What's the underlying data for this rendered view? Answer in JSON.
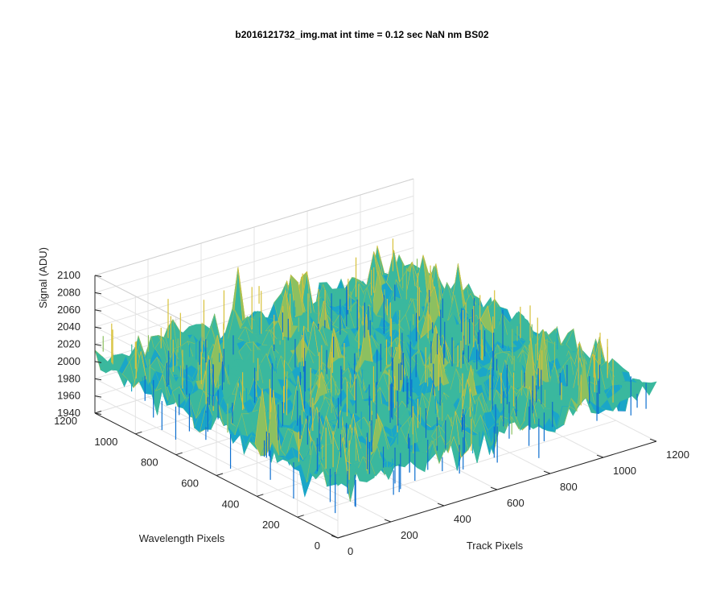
{
  "chart_data": {
    "type": "surface",
    "title": "b2016121732_img.mat int time = 0.12 sec  NaN nm BS02",
    "xlabel": "Track Pixels",
    "ylabel": "Wavelength Pixels",
    "zlabel": "Signal (ADU)",
    "x_range": [
      0,
      1200
    ],
    "y_range": [
      0,
      1200
    ],
    "z_range": [
      1940,
      2100
    ],
    "x_ticks": [
      "0",
      "200",
      "400",
      "600",
      "800",
      "1000",
      "1200"
    ],
    "y_ticks": [
      "0",
      "200",
      "400",
      "600",
      "800",
      "1000",
      "1200"
    ],
    "z_ticks": [
      "1940",
      "1960",
      "1980",
      "2000",
      "2020",
      "2040",
      "2060",
      "2080",
      "2100"
    ],
    "surface_mean": 2000,
    "surface_noise_range": [
      1955,
      2070
    ],
    "grid": true,
    "colormap": "parula",
    "colormap_colors": [
      "#0d6fd0",
      "#1aa6c8",
      "#3ab89e",
      "#8cc060",
      "#d7c13a"
    ]
  }
}
